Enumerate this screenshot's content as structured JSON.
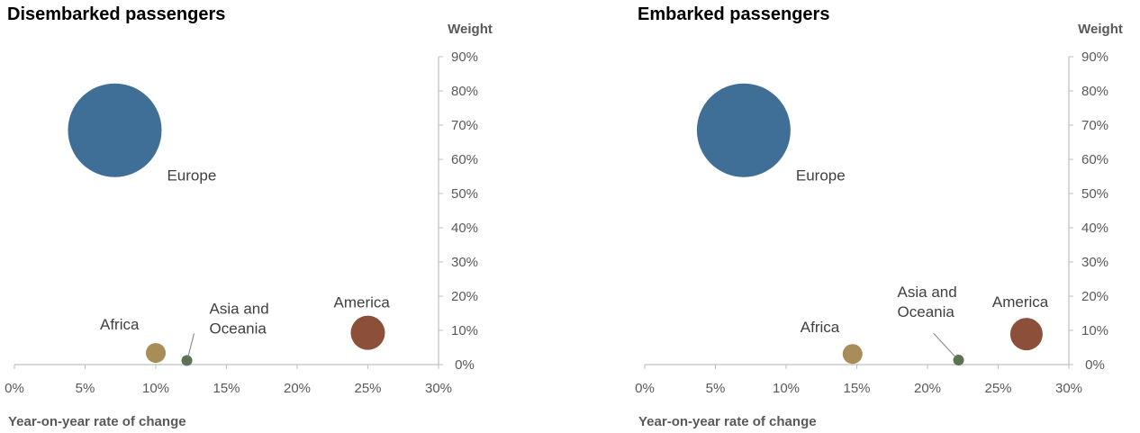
{
  "chart_data": [
    {
      "type": "bubble",
      "title": "Disembarked passengers",
      "xlabel": "Year-on-year rate of change",
      "ylabel": "Weight",
      "xlim": [
        0,
        30
      ],
      "ylim": [
        0,
        90
      ],
      "xticks": [
        "0%",
        "5%",
        "10%",
        "15%",
        "20%",
        "25%",
        "30%"
      ],
      "yticks": [
        "0%",
        "10%",
        "20%",
        "30%",
        "40%",
        "50%",
        "60%",
        "70%",
        "80%",
        "90%"
      ],
      "points": [
        {
          "name": "Europe",
          "x": 7.1,
          "y": 68.5,
          "color": "#3f6e96"
        },
        {
          "name": "America",
          "x": 25.0,
          "y": 9.3,
          "color": "#8b4f3a"
        },
        {
          "name": "Africa",
          "x": 10.0,
          "y": 3.4,
          "color": "#a88d59"
        },
        {
          "name": "Asia and Oceania",
          "x": 12.2,
          "y": 1.2,
          "color": "#5b7353"
        }
      ]
    },
    {
      "type": "bubble",
      "title": "Embarked passengers",
      "xlabel": "Year-on-year rate of change",
      "ylabel": "Weight",
      "xlim": [
        0,
        30
      ],
      "ylim": [
        0,
        90
      ],
      "xticks": [
        "0%",
        "5%",
        "10%",
        "15%",
        "20%",
        "25%",
        "30%"
      ],
      "yticks": [
        "0%",
        "10%",
        "20%",
        "30%",
        "40%",
        "50%",
        "60%",
        "70%",
        "80%",
        "90%"
      ],
      "points": [
        {
          "name": "Europe",
          "x": 7.0,
          "y": 68.5,
          "color": "#3f6e96"
        },
        {
          "name": "America",
          "x": 27.0,
          "y": 8.9,
          "color": "#8b4f3a"
        },
        {
          "name": "Africa",
          "x": 14.7,
          "y": 3.1,
          "color": "#a88d59"
        },
        {
          "name": "Asia and Oceania",
          "x": 22.2,
          "y": 1.3,
          "color": "#5b7353"
        }
      ]
    }
  ]
}
